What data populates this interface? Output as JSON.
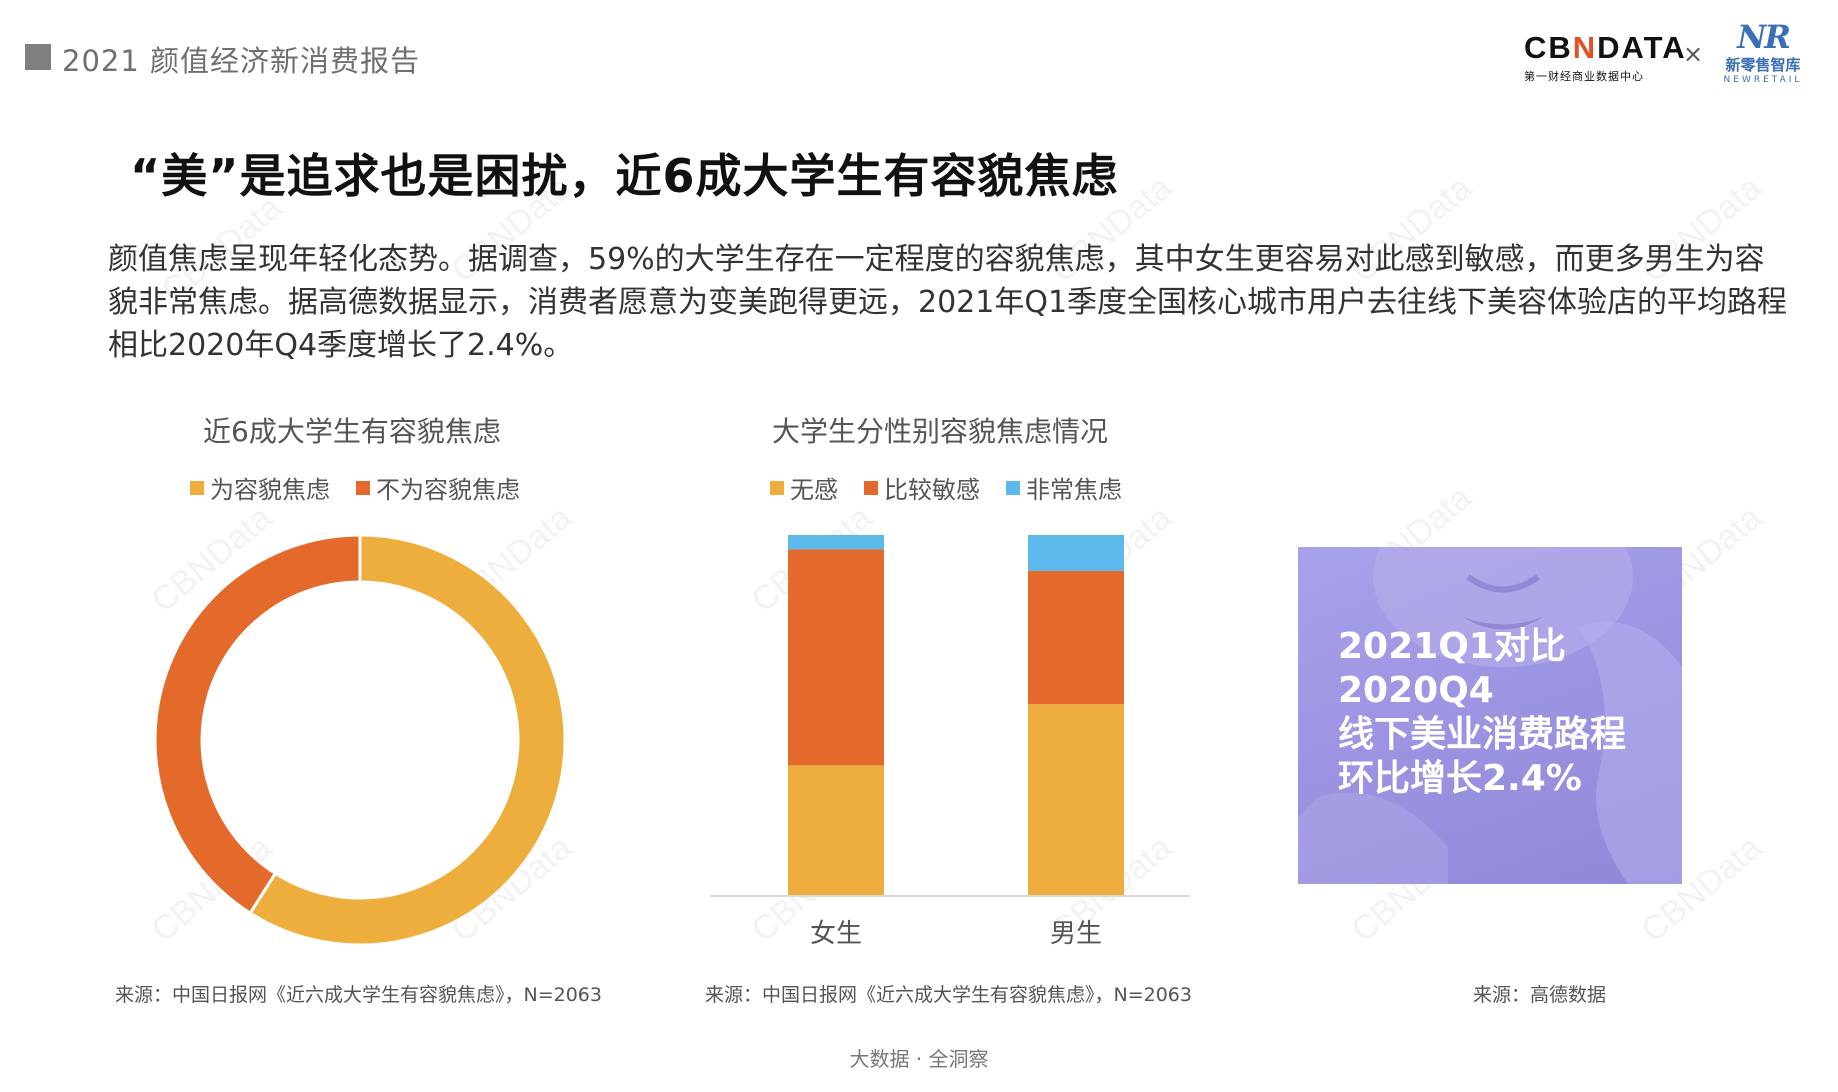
{
  "header": {
    "title": "2021 颜值经济新消费报告"
  },
  "logos": {
    "cbn_brand_left": "CB",
    "cbn_brand_n": "N",
    "cbn_brand_right": "DATA",
    "cbn_sub": "第一财经商业数据中心",
    "times": "×",
    "nr_mark": "NR",
    "nr_cn": "新零售智库",
    "nr_en": "NEWRETAIL"
  },
  "main_title": "“美”是追求也是困扰，近6成大学生有容貌焦虑",
  "description": "颜值焦虑呈现年轻化态势。据调查，59%的大学生存在一定程度的容貌焦虑，其中女生更容易对此感到敏感，而更多男生为容貌非常焦虑。据高德数据显示，消费者愿意为变美跑得更远，2021年Q1季度全国核心城市用户去往线下美容体验店的平均路程相比2020年Q4季度增长了2.4%。",
  "colors": {
    "yellow": "#eeae3e",
    "orange": "#e46a2b",
    "blue": "#5db9ec",
    "axis": "#d9d9d9"
  },
  "chart_data": [
    {
      "type": "pie",
      "title": "近6成大学生有容貌焦虑",
      "donut": true,
      "legend_position": "top",
      "slices": [
        {
          "label": "为容貌焦虑",
          "value": 59,
          "color": "#eeae3e"
        },
        {
          "label": "不为容貌焦虑",
          "value": 41,
          "color": "#e46a2b"
        }
      ]
    },
    {
      "type": "bar",
      "stacked": true,
      "title": "大学生分性别容貌焦虑情况",
      "legend_position": "top",
      "categories": [
        "女生",
        "男生"
      ],
      "ylim": [
        0,
        100
      ],
      "grid": false,
      "series": [
        {
          "name": "无感",
          "values": [
            36,
            53
          ],
          "color": "#eeae3e"
        },
        {
          "name": "比较敏感",
          "values": [
            60,
            37
          ],
          "color": "#e46a2b"
        },
        {
          "name": "非常焦虑",
          "values": [
            4,
            10
          ],
          "color": "#5db9ec"
        }
      ]
    }
  ],
  "photo_panel": {
    "lines": [
      "2021Q1对比",
      "2020Q4",
      "线下美业消费路程",
      "环比增长2.4%"
    ]
  },
  "sources": {
    "chart1": "来源：中国日报网《近六成大学生有容貌焦虑》，N=2063",
    "chart2": "来源：中国日报网《近六成大学生有容貌焦虑》，N=2063",
    "chart3": "来源：高德数据"
  },
  "watermark": "CBNData",
  "footer": "大数据 · 全洞察"
}
